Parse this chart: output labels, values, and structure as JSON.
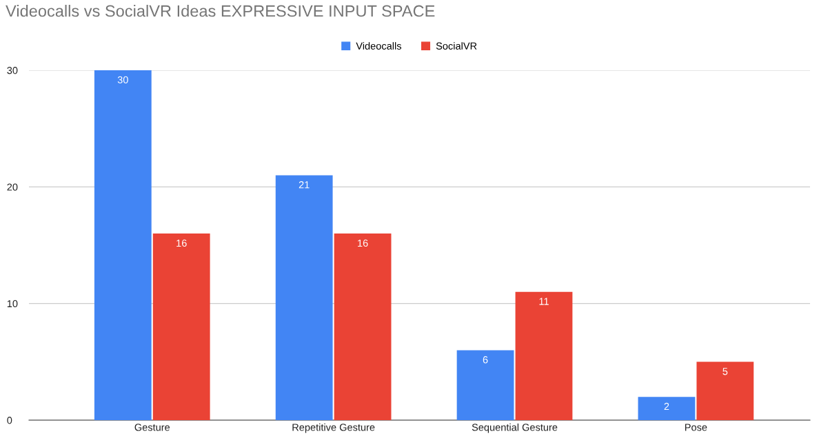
{
  "chart_data": {
    "type": "bar",
    "title": "Videocalls vs SocialVR Ideas EXPRESSIVE INPUT SPACE",
    "categories": [
      "Gesture",
      "Repetitive Gesture",
      "Sequential Gesture",
      "Pose"
    ],
    "series": [
      {
        "name": "Videocalls",
        "color": "#4285f4",
        "values": [
          30,
          21,
          6,
          2
        ]
      },
      {
        "name": "SocialVR",
        "color": "#ea4335",
        "values": [
          16,
          16,
          11,
          5
        ]
      }
    ],
    "ylim": [
      0,
      30
    ],
    "yticks": [
      0,
      10,
      20,
      30
    ],
    "grid": "y",
    "legend": "top",
    "data_labels": true
  }
}
